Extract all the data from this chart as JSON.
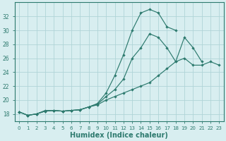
{
  "xlabel": "Humidex (Indice chaleur)",
  "curve1_x": [
    0,
    1,
    2,
    3,
    4,
    5,
    6,
    7,
    8,
    9,
    10,
    11,
    12,
    13,
    14,
    15,
    16,
    17,
    18
  ],
  "curve1_y": [
    18.3,
    17.8,
    18.0,
    18.5,
    18.5,
    18.4,
    18.5,
    18.6,
    19.0,
    19.5,
    21.0,
    23.5,
    26.5,
    30.0,
    32.5,
    33.0,
    32.5,
    30.5,
    30.0
  ],
  "curve2_x": [
    0,
    1,
    2,
    3,
    4,
    5,
    6,
    7,
    8,
    9,
    10,
    11,
    12,
    13,
    14,
    15,
    16,
    17,
    18,
    19,
    20,
    21
  ],
  "curve2_y": [
    18.3,
    17.8,
    18.0,
    18.4,
    18.5,
    18.4,
    18.5,
    18.6,
    19.0,
    19.4,
    20.5,
    21.5,
    23.0,
    26.0,
    27.5,
    29.5,
    29.0,
    27.5,
    25.5,
    29.0,
    27.5,
    25.5
  ],
  "curve3_x": [
    0,
    1,
    2,
    3,
    4,
    5,
    6,
    7,
    8,
    9,
    10,
    11,
    12,
    13,
    14,
    15,
    16,
    17,
    18,
    19,
    20,
    21,
    22,
    23
  ],
  "curve3_y": [
    18.3,
    17.8,
    18.0,
    18.4,
    18.5,
    18.4,
    18.5,
    18.6,
    19.0,
    19.3,
    20.0,
    20.5,
    21.0,
    21.5,
    22.0,
    22.5,
    23.5,
    24.5,
    25.5,
    26.0,
    25.0,
    25.0,
    25.5,
    25.0
  ],
  "color": "#2d7a6e",
  "bg_color": "#d8eef0",
  "grid_color": "#b0d4d8",
  "ylim": [
    17.0,
    34.0
  ],
  "yticks": [
    18,
    20,
    22,
    24,
    26,
    28,
    30,
    32
  ],
  "xlim": [
    -0.5,
    23.5
  ],
  "xticks": [
    0,
    1,
    2,
    3,
    4,
    5,
    6,
    7,
    8,
    9,
    10,
    11,
    12,
    13,
    14,
    15,
    16,
    17,
    18,
    19,
    20,
    21,
    22,
    23
  ]
}
